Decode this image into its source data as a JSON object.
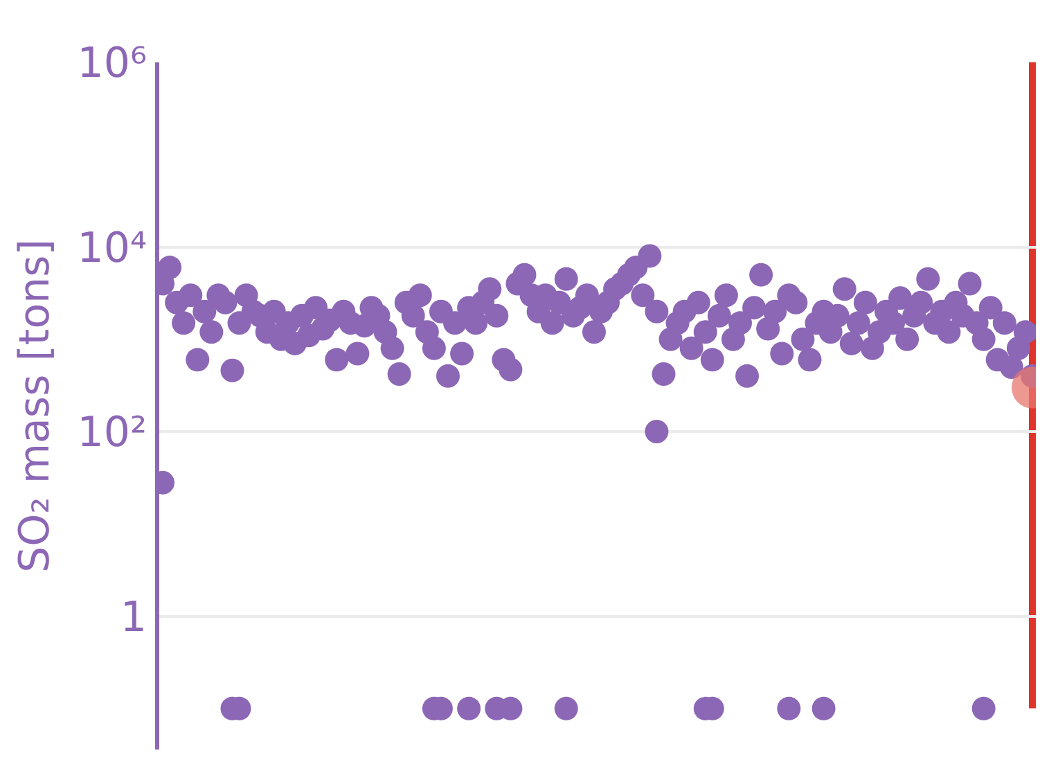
{
  "chart_data": {
    "type": "scatter",
    "log": "y",
    "grid": "y",
    "marker": "circle",
    "ylabel": "SO₂ mass [tons]",
    "ylim": [
      0.036,
      1000000
    ],
    "yticks": [
      1,
      {
        "value": 100,
        "label": "10²"
      },
      {
        "value": 10000,
        "label": "10⁴"
      },
      {
        "value": 1000000,
        "label": "10⁶"
      }
    ],
    "categories": [
      null,
      null,
      null,
      null,
      null,
      null,
      null,
      null,
      null,
      null,
      null,
      null,
      null,
      null,
      null,
      null,
      null,
      null,
      null,
      null,
      null,
      null,
      null,
      null,
      null,
      null,
      null,
      null,
      null,
      null,
      null,
      null,
      null,
      null,
      null,
      null,
      null,
      null,
      null,
      null,
      null,
      null,
      null,
      null,
      null,
      null,
      null,
      null,
      null,
      null,
      null,
      null,
      null,
      null,
      null,
      null,
      null,
      null,
      null,
      null,
      null,
      null,
      null,
      null,
      null,
      null,
      null,
      null,
      null,
      null,
      null,
      null,
      null,
      null,
      null,
      null,
      null,
      null,
      null,
      null,
      null,
      null,
      null,
      null,
      null,
      null,
      null,
      null,
      null,
      null,
      null,
      null,
      null,
      null,
      null,
      null,
      null,
      null,
      null,
      null,
      null,
      null,
      null,
      null,
      null,
      null,
      null,
      null,
      null,
      null,
      null,
      null,
      null,
      null,
      null,
      null,
      null,
      null,
      null,
      null,
      null,
      null,
      null,
      null,
      null,
      null
    ],
    "series": [
      {
        "color": "#8c67b5",
        "values": [
          4000,
          6000,
          2500,
          1500,
          3000,
          600,
          2000,
          1200,
          3000,
          2500,
          460,
          1500,
          3000,
          2000,
          1800,
          1200,
          2000,
          1000,
          1500,
          900,
          1800,
          1100,
          2200,
          1300,
          1600,
          600,
          2000,
          1500,
          700,
          1400,
          2200,
          1800,
          1200,
          800,
          420,
          2500,
          1800,
          3000,
          1200,
          800,
          2000,
          400,
          1500,
          700,
          2200,
          1500,
          2500,
          3500,
          1800,
          600,
          470,
          4000,
          5000,
          3000,
          2000,
          3000,
          1500,
          2500,
          4500,
          1800,
          2200,
          3000,
          1200,
          2000,
          2500,
          3500,
          4000,
          5000,
          6000,
          3000,
          8000,
          2000,
          420,
          1000,
          1500,
          2000,
          800,
          2500,
          1200,
          600,
          1800,
          3000,
          1000,
          1500,
          400,
          2200,
          5000,
          1300,
          2000,
          700,
          3000,
          2500,
          1000,
          600,
          1500,
          2000,
          1200,
          1800,
          3500,
          900,
          1500,
          2500,
          800,
          1200,
          2000,
          1500,
          2800,
          1000,
          1800,
          2500,
          4500,
          1500,
          2000,
          1200,
          2500,
          1800,
          4000,
          1500,
          1000,
          2200,
          600,
          1500,
          500,
          800,
          1200,
          400
        ]
      },
      {
        "color": "#8c67b5",
        "values": [
          28,
          null,
          null,
          null,
          null,
          null,
          null,
          null,
          null,
          null,
          0.1,
          0.1,
          null,
          null,
          null,
          null,
          null,
          null,
          null,
          null,
          null,
          null,
          null,
          null,
          null,
          null,
          null,
          null,
          null,
          null,
          null,
          null,
          null,
          null,
          null,
          null,
          null,
          null,
          null,
          0.1,
          0.1,
          null,
          null,
          null,
          0.1,
          null,
          null,
          null,
          0.1,
          null,
          0.1,
          null,
          null,
          null,
          null,
          null,
          null,
          null,
          0.1,
          null,
          null,
          null,
          null,
          null,
          null,
          null,
          null,
          null,
          null,
          null,
          null,
          100,
          null,
          null,
          null,
          null,
          null,
          null,
          0.1,
          0.1,
          null,
          null,
          null,
          null,
          null,
          null,
          null,
          null,
          null,
          null,
          0.1,
          null,
          null,
          null,
          null,
          0.1,
          null,
          null,
          null,
          null,
          null,
          null,
          null,
          null,
          null,
          null,
          null,
          null,
          null,
          null,
          null,
          null,
          null,
          null,
          null,
          null,
          null,
          null,
          0.1,
          null,
          null,
          null,
          null,
          null,
          null,
          null
        ]
      },
      {
        "color": "#e8766e",
        "values": [
          null,
          null,
          null,
          null,
          null,
          null,
          null,
          null,
          null,
          null,
          null,
          null,
          null,
          null,
          null,
          null,
          null,
          null,
          null,
          null,
          null,
          null,
          null,
          null,
          null,
          null,
          null,
          null,
          null,
          null,
          null,
          null,
          null,
          null,
          null,
          null,
          null,
          null,
          null,
          null,
          null,
          null,
          null,
          null,
          null,
          null,
          null,
          null,
          null,
          null,
          null,
          null,
          null,
          null,
          null,
          null,
          null,
          null,
          null,
          null,
          null,
          null,
          null,
          null,
          null,
          null,
          null,
          null,
          null,
          null,
          null,
          null,
          null,
          null,
          null,
          null,
          null,
          null,
          null,
          null,
          null,
          null,
          null,
          null,
          null,
          null,
          null,
          null,
          null,
          null,
          null,
          null,
          null,
          null,
          null,
          null,
          null,
          null,
          null,
          null,
          null,
          null,
          null,
          null,
          null,
          null,
          null,
          null,
          null,
          null,
          null,
          null,
          null,
          null,
          null,
          null,
          null,
          null,
          null,
          null,
          null,
          null,
          null,
          null,
          null,
          300
        ]
      }
    ]
  }
}
